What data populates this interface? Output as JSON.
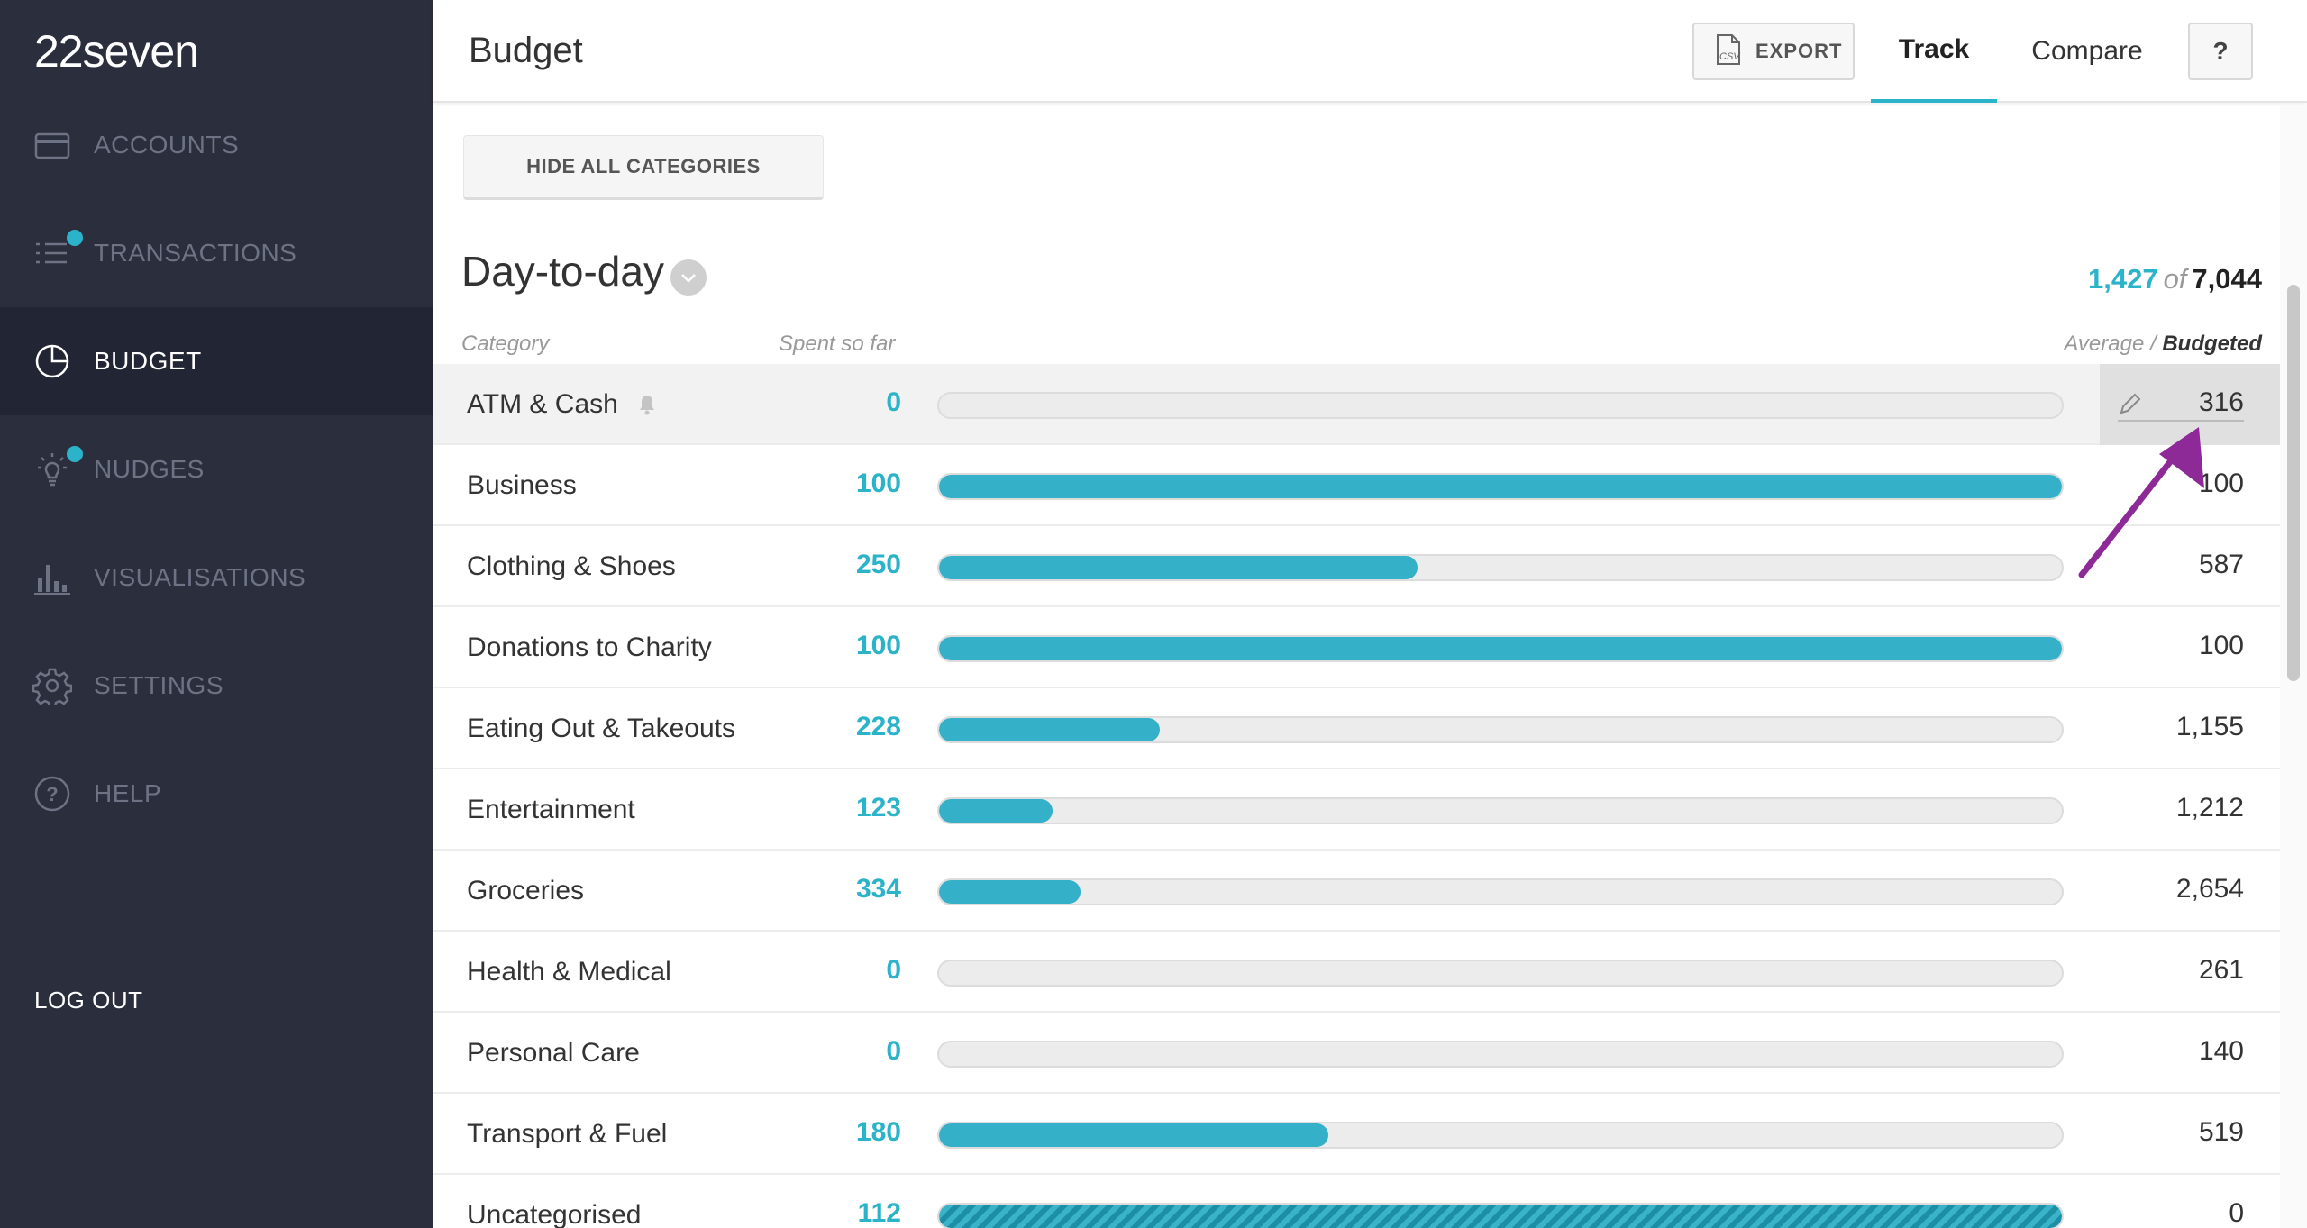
{
  "app": {
    "logo": "22seven"
  },
  "sidebar": {
    "items": [
      {
        "label": "ACCOUNTS",
        "icon": "card-icon",
        "active": false,
        "notification": false
      },
      {
        "label": "TRANSACTIONS",
        "icon": "list-icon",
        "active": false,
        "notification": true
      },
      {
        "label": "BUDGET",
        "icon": "pie-icon",
        "active": true,
        "notification": false
      },
      {
        "label": "NUDGES",
        "icon": "lightbulb-icon",
        "active": false,
        "notification": true
      },
      {
        "label": "VISUALISATIONS",
        "icon": "bar-chart-icon",
        "active": false,
        "notification": false
      },
      {
        "label": "SETTINGS",
        "icon": "gear-icon",
        "active": false,
        "notification": false
      },
      {
        "label": "HELP",
        "icon": "help-circle-icon",
        "active": false,
        "notification": false
      }
    ],
    "logout": "LOG OUT"
  },
  "header": {
    "title": "Budget",
    "export_label": "EXPORT",
    "export_icon": "csv-file-icon",
    "tabs": [
      {
        "label": "Track",
        "active": true
      },
      {
        "label": "Compare",
        "active": false
      }
    ],
    "help_label": "?"
  },
  "main": {
    "hide_all_label": "HIDE ALL CATEGORIES",
    "section": {
      "title": "Day-to-day",
      "spent_total": "1,427",
      "of_label": "of",
      "budget_total": "7,044"
    },
    "columns": {
      "category": "Category",
      "spent": "Spent so far",
      "average": "Average /",
      "budgeted": "Budgeted"
    },
    "rows": [
      {
        "name": "ATM & Cash",
        "spent": "0",
        "budget": "316",
        "progress": 0,
        "has_alert": true,
        "editing": true,
        "hatched": false
      },
      {
        "name": "Business",
        "spent": "100",
        "budget": "100",
        "progress": 1.0,
        "has_alert": false,
        "editing": false,
        "hatched": false
      },
      {
        "name": "Clothing & Shoes",
        "spent": "250",
        "budget": "587",
        "progress": 0.426,
        "has_alert": false,
        "editing": false,
        "hatched": false
      },
      {
        "name": "Donations to Charity",
        "spent": "100",
        "budget": "100",
        "progress": 1.0,
        "has_alert": false,
        "editing": false,
        "hatched": false
      },
      {
        "name": "Eating Out & Takeouts",
        "spent": "228",
        "budget": "1,155",
        "progress": 0.197,
        "has_alert": false,
        "editing": false,
        "hatched": false
      },
      {
        "name": "Entertainment",
        "spent": "123",
        "budget": "1,212",
        "progress": 0.101,
        "has_alert": false,
        "editing": false,
        "hatched": false
      },
      {
        "name": "Groceries",
        "spent": "334",
        "budget": "2,654",
        "progress": 0.126,
        "has_alert": false,
        "editing": false,
        "hatched": false
      },
      {
        "name": "Health & Medical",
        "spent": "0",
        "budget": "261",
        "progress": 0,
        "has_alert": false,
        "editing": false,
        "hatched": false
      },
      {
        "name": "Personal Care",
        "spent": "0",
        "budget": "140",
        "progress": 0,
        "has_alert": false,
        "editing": false,
        "hatched": false
      },
      {
        "name": "Transport & Fuel",
        "spent": "180",
        "budget": "519",
        "progress": 0.347,
        "has_alert": false,
        "editing": false,
        "hatched": false
      },
      {
        "name": "Uncategorised",
        "spent": "112",
        "budget": "0",
        "progress": 1.0,
        "has_alert": false,
        "editing": false,
        "hatched": true
      }
    ]
  },
  "colors": {
    "accent": "#2bb3c9",
    "sidebar": "#2b2e3c",
    "arrow": "#8e2a98"
  }
}
